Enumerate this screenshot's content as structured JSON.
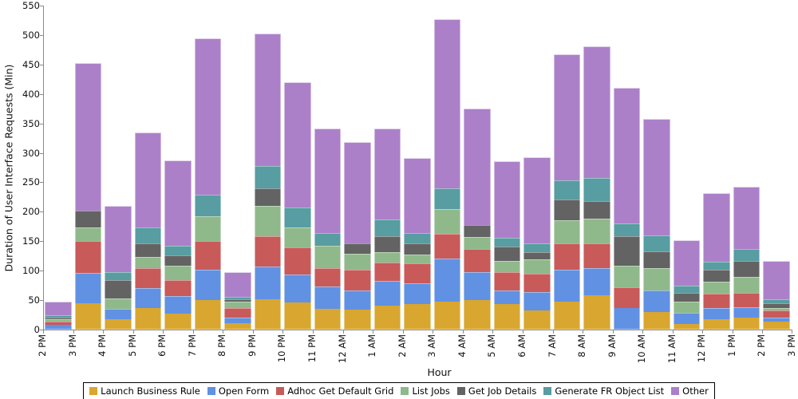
{
  "chart_data": {
    "type": "bar",
    "stacked": true,
    "title": "",
    "xlabel": "Hour",
    "ylabel": "Duration of User Interface Requests (Min)",
    "ylim": [
      0,
      550
    ],
    "yticks": [
      0,
      50,
      100,
      150,
      200,
      250,
      300,
      350,
      400,
      450,
      500,
      550
    ],
    "grid": false,
    "legend_position": "bottom",
    "categories": [
      "2 PM",
      "3 PM",
      "4 PM",
      "5 PM",
      "6 PM",
      "7 PM",
      "8 PM",
      "9 PM",
      "10 PM",
      "11 PM",
      "12 AM",
      "1 AM",
      "2 AM",
      "3 AM",
      "4 AM",
      "5 AM",
      "6 AM",
      "7 AM",
      "8 AM",
      "9 AM",
      "10 AM",
      "11 AM",
      "12 PM",
      "1 PM",
      "2 PM",
      "3 PM"
    ],
    "series": [
      {
        "name": "Launch Business Rule",
        "color": "#D9A62F",
        "values": [
          0,
          45,
          18,
          37,
          27,
          50,
          11,
          52,
          46,
          35,
          34,
          40,
          44,
          48,
          50,
          44,
          32,
          48,
          58,
          0,
          30,
          10,
          18,
          20,
          13,
          null
        ]
      },
      {
        "name": "Open Form",
        "color": "#6191E2",
        "values": [
          8,
          51,
          17,
          33,
          30,
          52,
          9,
          55,
          48,
          38,
          33,
          42,
          34,
          72,
          47,
          22,
          32,
          53,
          47,
          37,
          36,
          19,
          19,
          18,
          8,
          null
        ]
      },
      {
        "name": "Adhoc Get Default Grid",
        "color": "#C85A5A",
        "values": [
          5,
          55,
          0,
          34,
          27,
          48,
          16,
          52,
          46,
          32,
          35,
          32,
          34,
          43,
          40,
          32,
          31,
          46,
          41,
          35,
          0,
          0,
          24,
          25,
          11,
          null
        ]
      },
      {
        "name": "List Jobs",
        "color": "#8FB98A",
        "values": [
          4,
          22,
          18,
          19,
          25,
          43,
          11,
          51,
          34,
          37,
          27,
          17,
          16,
          41,
          20,
          18,
          24,
          38,
          43,
          36,
          38,
          19,
          21,
          26,
          5,
          null
        ]
      },
      {
        "name": "Get Job Details",
        "color": "#636363",
        "values": [
          4,
          29,
          31,
          24,
          17,
          0,
          4,
          30,
          0,
          0,
          17,
          28,
          18,
          0,
          20,
          25,
          12,
          36,
          29,
          50,
          29,
          15,
          20,
          27,
          8,
          null
        ]
      },
      {
        "name": "Generate FR Object List",
        "color": "#579DA1",
        "values": [
          3,
          0,
          13,
          26,
          16,
          36,
          5,
          38,
          33,
          22,
          0,
          28,
          18,
          36,
          0,
          15,
          16,
          32,
          39,
          22,
          27,
          11,
          13,
          21,
          7,
          null
        ]
      },
      {
        "name": "Other",
        "color": "#AC80C9",
        "values": [
          23,
          250,
          113,
          162,
          145,
          265,
          42,
          224,
          213,
          177,
          172,
          155,
          128,
          287,
          198,
          130,
          146,
          215,
          224,
          231,
          198,
          78,
          117,
          106,
          65,
          null
        ]
      }
    ]
  }
}
